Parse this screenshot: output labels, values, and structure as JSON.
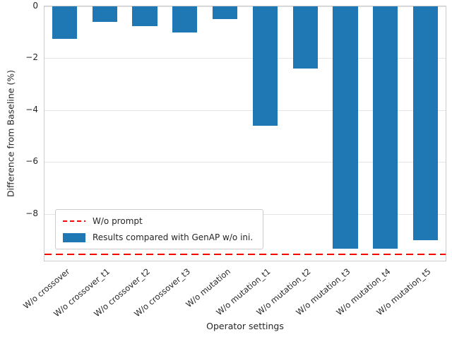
{
  "chart_data": {
    "type": "bar",
    "title": "",
    "xlabel": "Operator settings",
    "ylabel": "Difference from Baseline (%)",
    "categories": [
      "W/o crossover",
      "W/o crossover_t1",
      "W/o crossover_t2",
      "W/o crossover_t3",
      "W/o mutation",
      "W/o mutation_t1",
      "W/o mutation_t2",
      "W/o mutation_t3",
      "W/o mutation_t4",
      "W/o mutation_t5"
    ],
    "values": [
      -1.25,
      -0.6,
      -0.75,
      -1.0,
      -0.5,
      -4.6,
      -2.4,
      -9.35,
      -9.35,
      -9.0
    ],
    "ylim": [
      -9.8,
      0
    ],
    "yticks": [
      0,
      -2,
      -4,
      -6,
      -8
    ],
    "grid": true,
    "bar_color": "#1f77b4",
    "baseline": {
      "value": -9.55,
      "color": "#ff0000",
      "style": "dashed",
      "label": "W/o prompt"
    },
    "legend": {
      "position": "lower-left",
      "entries": [
        {
          "type": "line",
          "color": "#ff0000",
          "label": "W/o prompt"
        },
        {
          "type": "bar",
          "color": "#1f77b4",
          "label": "Results compared with GenAP w/o ini."
        }
      ]
    }
  }
}
